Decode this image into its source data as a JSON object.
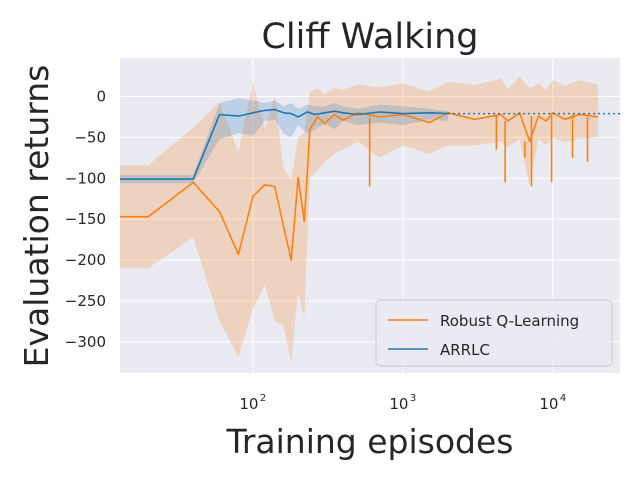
{
  "chart_data": {
    "type": "line",
    "title": "Cliff Walking",
    "xlabel": "Training episodes",
    "ylabel": "Evaluation returns",
    "xscale": "log",
    "xlim": [
      13,
      28000
    ],
    "ylim": [
      -338,
      47
    ],
    "grid": true,
    "legend_position": "lower-right",
    "colors": {
      "background": "#eaeaf2",
      "grid": "#ffffff",
      "text": "#262626"
    },
    "x_ticks": [
      {
        "value": 100,
        "base": "10",
        "exp": "2"
      },
      {
        "value": 1000,
        "base": "10",
        "exp": "3"
      },
      {
        "value": 10000,
        "base": "10",
        "exp": "4"
      }
    ],
    "y_ticks": [
      {
        "value": 0,
        "label": "0"
      },
      {
        "value": -50,
        "label": "−50"
      },
      {
        "value": -100,
        "label": "−100"
      },
      {
        "value": -150,
        "label": "−150"
      },
      {
        "value": -200,
        "label": "−200"
      },
      {
        "value": -250,
        "label": "−250"
      },
      {
        "value": -300,
        "label": "−300"
      }
    ],
    "series": [
      {
        "name": "Robust Q-Learning",
        "color": "#ff7f0e",
        "x": [
          13,
          20,
          40,
          60,
          80,
          100,
          120,
          140,
          160,
          180,
          200,
          220,
          240,
          270,
          300,
          350,
          400,
          500,
          700,
          1000,
          1500,
          2000,
          3000,
          4500,
          5000,
          6000,
          7000,
          8000,
          9000,
          10000,
          12000,
          15000,
          20000
        ],
        "values": [
          -147,
          -147,
          -105,
          -141,
          -193,
          -122,
          -108,
          -110,
          -159,
          -200,
          -99,
          -153,
          -40,
          -25,
          -33,
          -22,
          -29,
          -20,
          -25,
          -22,
          -32,
          -20,
          -28,
          -22,
          -30,
          -20,
          -55,
          -24,
          -30,
          -20,
          -28,
          -22,
          -25
        ],
        "lower": [
          -210,
          -210,
          -172,
          -275,
          -318,
          -260,
          -230,
          -275,
          -280,
          -325,
          -240,
          -270,
          -100,
          -90,
          -80,
          -70,
          -65,
          -55,
          -75,
          -60,
          -70,
          -60,
          -60,
          -55,
          -62,
          -52,
          -110,
          -52,
          -60,
          -50,
          -56,
          -52,
          -50
        ],
        "upper": [
          -84,
          -84,
          -38,
          -7,
          -68,
          17,
          -40,
          0,
          -88,
          -102,
          -50,
          -45,
          5,
          10,
          3,
          10,
          8,
          15,
          11,
          16,
          6,
          18,
          14,
          22,
          9,
          24,
          10,
          16,
          8,
          20,
          13,
          20,
          15
        ],
        "spikes": [
          {
            "x": 600,
            "y": -110
          },
          {
            "x": 4200,
            "y": -65
          },
          {
            "x": 4800,
            "y": -105
          },
          {
            "x": 6500,
            "y": -75
          },
          {
            "x": 7200,
            "y": -110
          },
          {
            "x": 9800,
            "y": -105
          },
          {
            "x": 13500,
            "y": -75
          },
          {
            "x": 17000,
            "y": -80
          }
        ]
      },
      {
        "name": "ARRLC",
        "color": "#1f77b4",
        "x": [
          13,
          40,
          60,
          80,
          100,
          120,
          140,
          160,
          180,
          200,
          230,
          260,
          300,
          350,
          400,
          500,
          700,
          1000,
          1500,
          2000
        ],
        "values": [
          -101,
          -101,
          -22,
          -24,
          -20,
          -17,
          -16,
          -20,
          -21,
          -25,
          -19,
          -22,
          -20,
          -18,
          -20,
          -22,
          -19,
          -21,
          -20,
          -21
        ],
        "lower": [
          -106,
          -106,
          -52,
          -45,
          -48,
          -30,
          -28,
          -45,
          -50,
          -35,
          -45,
          -40,
          -33,
          -40,
          -30,
          -35,
          -32,
          -35,
          -28,
          -30
        ],
        "upper": [
          -96,
          -96,
          -8,
          -2,
          -5,
          -8,
          -5,
          -12,
          -8,
          -15,
          -10,
          -12,
          -12,
          -8,
          -12,
          -15,
          -10,
          -12,
          -15,
          -18
        ],
        "extension": {
          "x_end": 28000,
          "value": -21
        }
      }
    ]
  }
}
